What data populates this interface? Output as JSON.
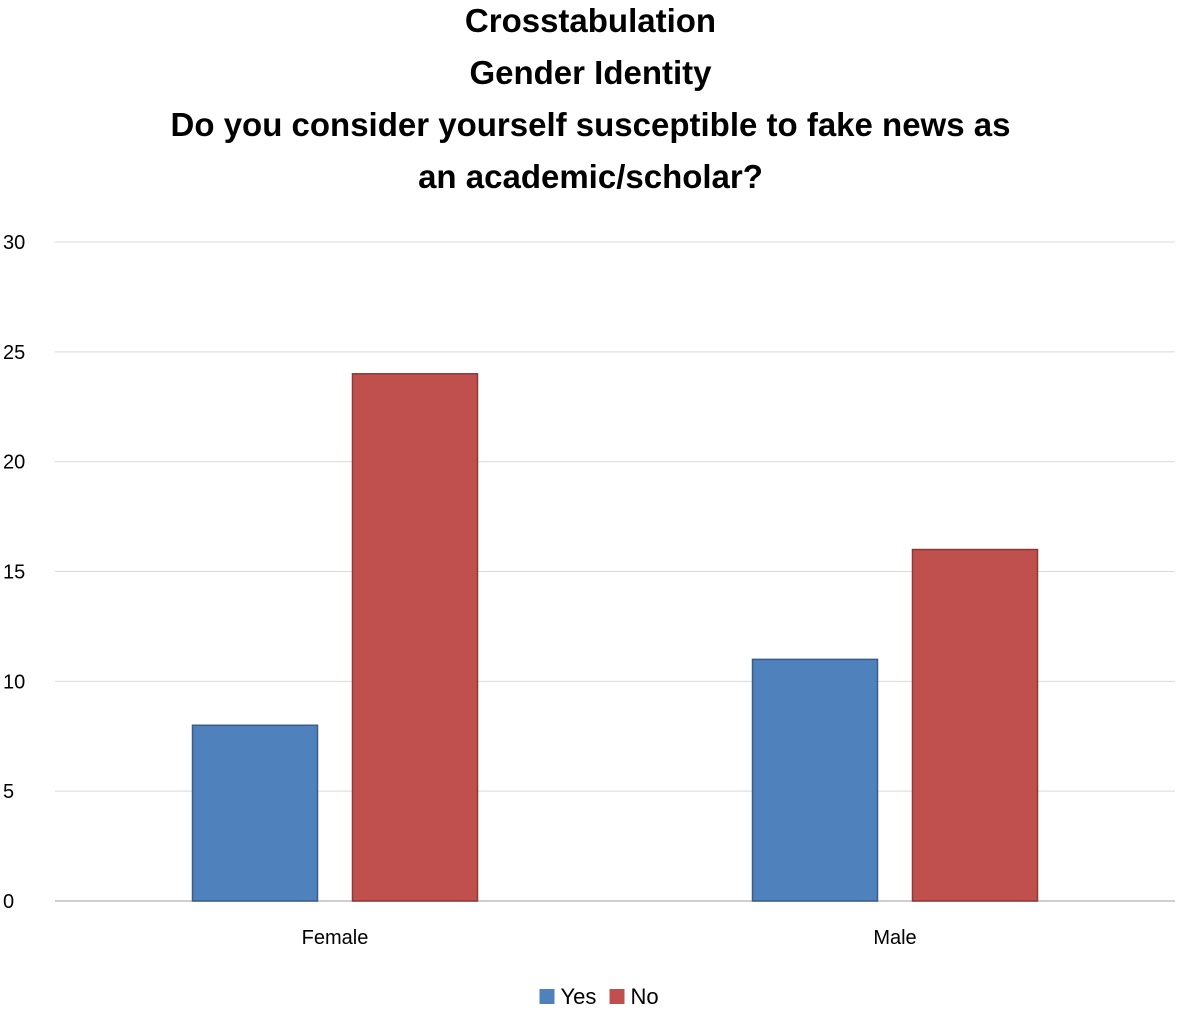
{
  "chart_data": {
    "type": "bar",
    "title_lines": [
      "Crosstabulation",
      "Gender Identity",
      "Do you consider yourself susceptible to fake news as",
      "an academic/scholar?"
    ],
    "categories": [
      "Female",
      "Male"
    ],
    "series": [
      {
        "name": "Yes",
        "values": [
          8,
          11
        ],
        "color": "#4f81bd"
      },
      {
        "name": "No",
        "values": [
          24,
          16
        ],
        "color": "#c0504d"
      }
    ],
    "ylim": [
      0,
      30
    ],
    "yticks": [
      0,
      5,
      10,
      15,
      20,
      25,
      30
    ],
    "grid": true,
    "legend_position": "bottom-center",
    "xlabel": "",
    "ylabel": ""
  }
}
